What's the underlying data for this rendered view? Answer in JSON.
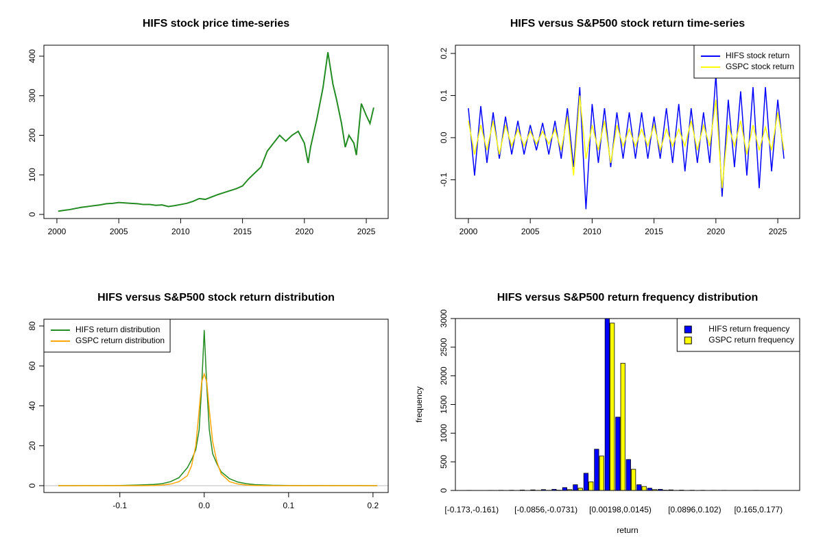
{
  "chart_data": [
    {
      "type": "line",
      "title": "HIFS stock price time-series",
      "x": [
        2000.1,
        2000.5,
        2001,
        2001.5,
        2002,
        2002.5,
        2003,
        2003.5,
        2004,
        2004.5,
        2005,
        2005.5,
        2006,
        2006.5,
        2007,
        2007.5,
        2008,
        2008.5,
        2009,
        2009.5,
        2010,
        2010.5,
        2011,
        2011.5,
        2012,
        2012.5,
        2013,
        2013.5,
        2014,
        2014.5,
        2015,
        2015.5,
        2016,
        2016.5,
        2017,
        2017.5,
        2018,
        2018.5,
        2019,
        2019.5,
        2020,
        2020.3,
        2020.5,
        2021,
        2021.5,
        2021.9,
        2022.3,
        2022.6,
        2023,
        2023.3,
        2023.6,
        2024,
        2024.2,
        2024.6,
        2025,
        2025.3,
        2025.6
      ],
      "series": [
        {
          "name": null,
          "color": "#228b22",
          "values": [
            8,
            10,
            12,
            15,
            18,
            20,
            22,
            24,
            27,
            28,
            30,
            29,
            28,
            27,
            25,
            25,
            23,
            24,
            20,
            22,
            25,
            28,
            33,
            40,
            38,
            44,
            50,
            55,
            60,
            65,
            72,
            90,
            105,
            120,
            160,
            180,
            200,
            185,
            200,
            210,
            180,
            130,
            170,
            240,
            320,
            410,
            330,
            290,
            230,
            170,
            200,
            180,
            150,
            280,
            250,
            230,
            270
          ]
        }
      ],
      "xlim": [
        1998.95,
        2026.77
      ],
      "xticks": [
        2000,
        2005,
        2010,
        2015,
        2020,
        2025
      ],
      "ylim": [
        -10.4,
        427.7
      ],
      "yticks": [
        0,
        100,
        200,
        300,
        400
      ]
    },
    {
      "type": "line",
      "title": "HIFS versus S&P500 stock return time-series",
      "legend": "topright",
      "x": [
        2000,
        2000.5,
        2001,
        2001.5,
        2002,
        2002.5,
        2003,
        2003.5,
        2004,
        2004.5,
        2005,
        2005.5,
        2006,
        2006.5,
        2007,
        2007.5,
        2008,
        2008.5,
        2009,
        2009.5,
        2010,
        2010.5,
        2011,
        2011.5,
        2012,
        2012.5,
        2013,
        2013.5,
        2014,
        2014.5,
        2015,
        2015.5,
        2016,
        2016.5,
        2017,
        2017.5,
        2018,
        2018.5,
        2019,
        2019.5,
        2020,
        2020.5,
        2021,
        2021.5,
        2022,
        2022.5,
        2023,
        2023.5,
        2024,
        2024.5,
        2025,
        2025.5
      ],
      "series": [
        {
          "name": "HIFS stock return",
          "color": "#0000ff",
          "values": [
            0.07,
            -0.09,
            0.075,
            -0.06,
            0.06,
            -0.05,
            0.05,
            -0.04,
            0.04,
            -0.04,
            0.03,
            -0.03,
            0.035,
            -0.04,
            0.04,
            -0.05,
            0.07,
            -0.07,
            0.12,
            -0.17,
            0.08,
            -0.06,
            0.07,
            -0.07,
            0.06,
            -0.05,
            0.06,
            -0.05,
            0.06,
            -0.05,
            0.05,
            -0.05,
            0.07,
            -0.06,
            0.08,
            -0.08,
            0.07,
            -0.06,
            0.06,
            -0.06,
            0.15,
            -0.14,
            0.09,
            -0.07,
            0.11,
            -0.09,
            0.12,
            -0.12,
            0.12,
            -0.08,
            0.09,
            -0.05
          ]
        },
        {
          "name": "GSPC stock return",
          "color": "#ffff00",
          "values": [
            0.04,
            -0.04,
            0.03,
            -0.03,
            0.04,
            -0.04,
            0.03,
            -0.02,
            0.02,
            -0.02,
            0.015,
            -0.015,
            0.015,
            -0.015,
            0.02,
            -0.03,
            0.05,
            -0.09,
            0.1,
            -0.05,
            0.03,
            -0.03,
            0.04,
            -0.06,
            0.03,
            -0.02,
            0.02,
            -0.02,
            0.02,
            -0.02,
            0.03,
            -0.03,
            0.02,
            -0.02,
            0.02,
            -0.02,
            0.04,
            -0.03,
            0.03,
            -0.02,
            0.09,
            -0.12,
            0.03,
            -0.02,
            0.04,
            -0.04,
            0.03,
            -0.03,
            0.025,
            -0.03,
            0.06,
            -0.03
          ]
        }
      ],
      "xlim": [
        1998.95,
        2026.77
      ],
      "xticks": [
        2000,
        2005,
        2010,
        2015,
        2020,
        2025
      ],
      "ylim": [
        -0.192,
        0.2195
      ],
      "yticks": [
        -0.1,
        {
          "value": 0,
          "label": "0.0"
        },
        0.1,
        0.2
      ]
    },
    {
      "type": "line",
      "title": "HIFS versus S&P500 stock return distribution",
      "legend": "topleft",
      "zero_line": true,
      "x": [
        -0.173,
        -0.1,
        -0.08,
        -0.06,
        -0.05,
        -0.04,
        -0.03,
        -0.02,
        -0.015,
        -0.01,
        -0.006,
        -0.003,
        0,
        0.003,
        0.006,
        0.01,
        0.015,
        0.02,
        0.03,
        0.04,
        0.05,
        0.06,
        0.08,
        0.1,
        0.205
      ],
      "series": [
        {
          "name": "HIFS return distribution",
          "color": "#228b22",
          "values": [
            0,
            0.1,
            0.3,
            0.6,
            1,
            2,
            4,
            9,
            13,
            18,
            28,
            50,
            78,
            50,
            28,
            16,
            11,
            7,
            3.5,
            1.8,
            1,
            0.5,
            0.2,
            0.1,
            0
          ]
        },
        {
          "name": "GSPC return distribution",
          "color": "#ffa500",
          "values": [
            0,
            0,
            0,
            0.1,
            0.3,
            0.8,
            2,
            5,
            10,
            20,
            38,
            52,
            56,
            52,
            38,
            22,
            12,
            6,
            2,
            0.8,
            0.3,
            0.1,
            0,
            0,
            0
          ]
        }
      ],
      "xlim": [
        -0.19,
        0.218
      ],
      "xticks": [
        -0.1,
        {
          "value": 0,
          "label": "0.0"
        },
        0.1,
        0.2
      ],
      "ylim": [
        -3.43,
        83.4
      ],
      "yticks": [
        0,
        20,
        40,
        60,
        80
      ]
    },
    {
      "type": "bar",
      "title": "HIFS versus S&P500 return frequency distribution",
      "legend": "topright",
      "xlabel": "return",
      "ylabel": "frequency",
      "categories": [
        "[-0.173,-0.161)",
        null,
        null,
        null,
        null,
        null,
        null,
        "[-0.0856,-0.0731)",
        null,
        null,
        null,
        null,
        null,
        null,
        "[0.00198,0.0145)",
        null,
        null,
        null,
        null,
        null,
        null,
        "[0.0896,0.102)",
        null,
        null,
        null,
        null,
        null,
        "[0.165,0.177)",
        null,
        null,
        null
      ],
      "series": [
        {
          "name": "HIFS return frequency",
          "color": "#0000ff",
          "values": [
            2,
            1,
            2,
            3,
            4,
            8,
            10,
            15,
            20,
            50,
            100,
            300,
            720,
            3050,
            1280,
            540,
            100,
            40,
            20,
            10,
            6,
            4,
            3,
            2,
            2,
            1,
            1,
            2,
            1,
            1,
            1
          ]
        },
        {
          "name": "GSPC return frequency",
          "color": "#ffff00",
          "values": [
            0,
            0,
            0,
            0,
            1,
            1,
            2,
            3,
            5,
            15,
            40,
            150,
            600,
            2920,
            2220,
            370,
            70,
            15,
            5,
            2,
            1,
            1,
            0,
            0,
            0,
            0,
            0,
            0,
            0,
            0,
            0
          ]
        }
      ],
      "ylim": [
        0,
        3000
      ],
      "yticks": [
        0,
        500,
        1000,
        1500,
        2000,
        2500,
        3000
      ]
    }
  ]
}
